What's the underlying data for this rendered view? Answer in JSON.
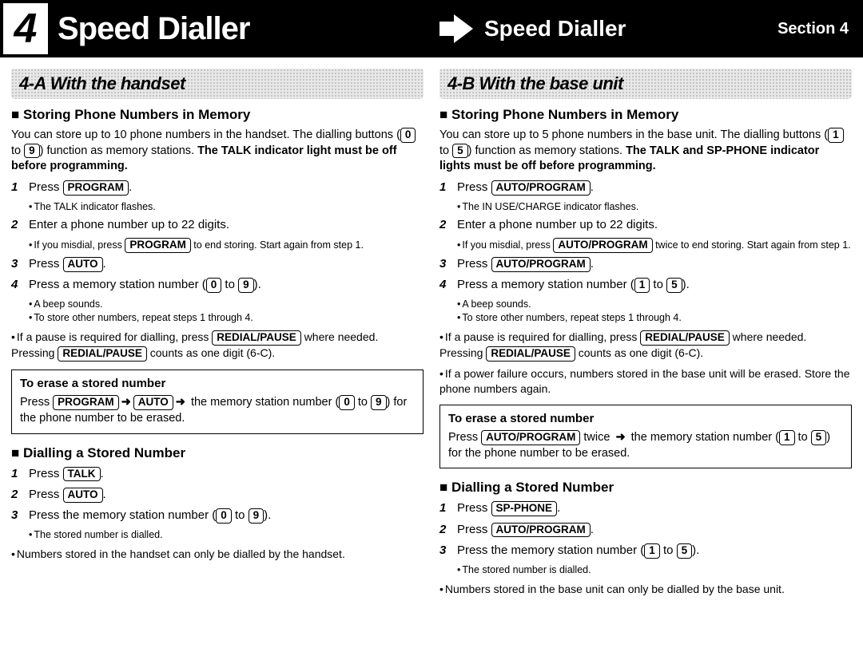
{
  "header": {
    "section_number": "4",
    "title_main": "Speed Dialler",
    "title_sub": "Speed Dialler",
    "section_label": "Section 4"
  },
  "left": {
    "subheader": "4-A  With the handset",
    "storing_title": "Storing Phone Numbers in Memory",
    "storing_intro_a": "You can store up to 10 phone numbers in the handset. The dialling buttons (",
    "storing_intro_key1": "0",
    "storing_intro_b": " to ",
    "storing_intro_key2": "9",
    "storing_intro_c": ") function as memory stations. ",
    "storing_intro_bold": "The TALK indicator light must be off before programming.",
    "steps": [
      {
        "n": "1",
        "pre": "Press ",
        "key": "PROGRAM",
        "post": ".",
        "notes": [
          "The TALK indicator flashes."
        ]
      },
      {
        "n": "2",
        "pre": "Enter a phone number up to 22 digits.",
        "key": null,
        "post": "",
        "notes": [
          "If you misdial, press PROGRAM to end storing. Start again from step 1."
        ],
        "note_has_key": true,
        "note_key": "PROGRAM",
        "note_pre": "If you misdial, press ",
        "note_post": " to end storing. Start again from step 1."
      },
      {
        "n": "3",
        "pre": "Press ",
        "key": "AUTO",
        "post": ".",
        "notes": []
      },
      {
        "n": "4",
        "pre": "Press a memory station number (",
        "key": "0",
        "mid": " to ",
        "key2": "9",
        "post": ").",
        "notes": [
          "A beep sounds.",
          "To store other numbers, repeat steps 1 through 4."
        ]
      }
    ],
    "pause_a": "If a pause is required for dialling, press ",
    "pause_key": "REDIAL/PAUSE",
    "pause_b": " where needed. Pressing ",
    "pause_key2": "REDIAL/PAUSE",
    "pause_c": " counts as one digit (6-C).",
    "erase_title": "To erase a stored number",
    "erase_a": "Press ",
    "erase_k1": "PROGRAM",
    "erase_b": " ",
    "erase_k2": "AUTO",
    "erase_c": " the memory station number (",
    "erase_k3": "0",
    "erase_d": " to ",
    "erase_k4": "9",
    "erase_e": ") for the phone number to be erased.",
    "dial_title": "Dialling a Stored Number",
    "dial_steps": [
      {
        "n": "1",
        "pre": "Press ",
        "key": "TALK",
        "post": "."
      },
      {
        "n": "2",
        "pre": "Press ",
        "key": "AUTO",
        "post": "."
      },
      {
        "n": "3",
        "pre": "Press the memory station number (",
        "key": "0",
        "mid": " to ",
        "key2": "9",
        "post": ").",
        "note": "The stored number is dialled."
      }
    ],
    "foot": "Numbers stored in the handset can only be dialled by the handset."
  },
  "right": {
    "subheader": "4-B  With the base unit",
    "storing_title": "Storing Phone Numbers in Memory",
    "storing_intro_a": "You can store up to 5 phone numbers in the base unit. The dialling buttons (",
    "storing_intro_key1": "1",
    "storing_intro_b": " to ",
    "storing_intro_key2": "5",
    "storing_intro_c": ") function as memory stations. ",
    "storing_intro_bold": "The TALK and SP-PHONE indicator lights must be off before programming.",
    "steps": [
      {
        "n": "1",
        "pre": "Press ",
        "key": "AUTO/PROGRAM",
        "post": ".",
        "notes": [
          "The IN USE/CHARGE indicator flashes."
        ]
      },
      {
        "n": "2",
        "pre": "Enter a phone number up to 22 digits.",
        "key": null,
        "post": "",
        "note_has_key": true,
        "note_pre": "If you misdial, press ",
        "note_key": "AUTO/PROGRAM",
        "note_post": " twice to end storing. Start again from step 1."
      },
      {
        "n": "3",
        "pre": "Press ",
        "key": "AUTO/PROGRAM",
        "post": ".",
        "notes": []
      },
      {
        "n": "4",
        "pre": "Press a memory station number (",
        "key": "1",
        "mid": " to ",
        "key2": "5",
        "post": ").",
        "notes": [
          "A beep sounds.",
          "To store other numbers, repeat steps 1 through 4."
        ]
      }
    ],
    "pause_a": "If a pause is required for dialling, press ",
    "pause_key": "REDIAL/PAUSE",
    "pause_b": " where needed. Pressing ",
    "pause_key2": "REDIAL/PAUSE",
    "pause_c": " counts as one digit (6-C).",
    "fail": "If a power failure occurs, numbers stored in the base unit will be erased. Store the phone numbers again.",
    "erase_title": "To erase a stored number",
    "erase_a": "Press ",
    "erase_k1": "AUTO/PROGRAM",
    "erase_b": " twice ",
    "erase_c": " the memory station number (",
    "erase_k3": "1",
    "erase_d": " to ",
    "erase_k4": "5",
    "erase_e": ") for the phone number to be erased.",
    "dial_title": "Dialling a Stored Number",
    "dial_steps": [
      {
        "n": "1",
        "pre": "Press ",
        "key": "SP-PHONE",
        "post": "."
      },
      {
        "n": "2",
        "pre": "Press ",
        "key": "AUTO/PROGRAM",
        "post": "."
      },
      {
        "n": "3",
        "pre": "Press the memory station number (",
        "key": "1",
        "mid": " to ",
        "key2": "5",
        "post": ").",
        "note": "The stored number is dialled."
      }
    ],
    "foot": "Numbers stored in the base unit can only be dialled by the base unit."
  }
}
